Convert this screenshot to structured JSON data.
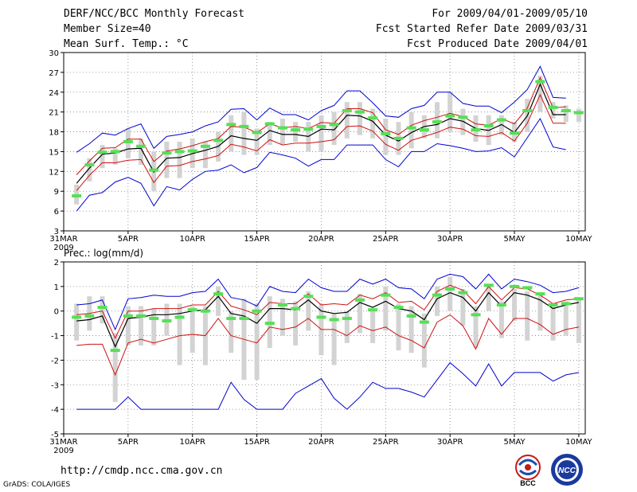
{
  "header": {
    "title": "DERF/NCC/BCC Monthly Forecast",
    "member": "Member Size=40",
    "variable": "Mean Surf. Temp.: °C",
    "forecast_period": "For 2009/04/01-2009/05/10",
    "started": "Fcst Started Refer Date 2009/03/31",
    "produced": "Fcst Produced Date 2009/04/01"
  },
  "footer": {
    "url": "http://cmdp.ncc.cma.gov.cn",
    "credit": "GrADS: COLA/IGES",
    "logo_left_text": "BCC",
    "logo_right_text": "NCC"
  },
  "colors": {
    "bar": "#d3d3d3",
    "median": "#55e055",
    "envelope": "#0000d0",
    "spread": "#d01010",
    "mean": "#000000",
    "grid": "#808080"
  },
  "chart_data": [
    {
      "type": "line",
      "title": "Mean Surf. Temp.: °C",
      "ylim": [
        3,
        30
      ],
      "yticks": [
        3,
        6,
        9,
        12,
        15,
        18,
        21,
        24,
        27,
        30
      ],
      "ytick_labels": [
        "3",
        "6",
        "9",
        "12",
        "15",
        "18",
        "21",
        "24",
        "27",
        "30"
      ],
      "x_tick_labels": [
        "31MAR",
        "5APR",
        "10APR",
        "15APR",
        "20APR",
        "25APR",
        "30APR",
        "5MAY",
        "10MAY"
      ],
      "x_tick_days": [
        0,
        5,
        10,
        15,
        20,
        25,
        30,
        35,
        40
      ],
      "year_label": "2009",
      "x_days": [
        1,
        2,
        3,
        4,
        5,
        6,
        7,
        8,
        9,
        10,
        11,
        12,
        13,
        14,
        15,
        16,
        17,
        18,
        19,
        20,
        21,
        22,
        23,
        24,
        25,
        26,
        27,
        28,
        29,
        30,
        31,
        32,
        33,
        34,
        35,
        36,
        37,
        38,
        39,
        40
      ],
      "series": [
        {
          "name": "max",
          "values": [
            14.9,
            16.2,
            17.8,
            17.5,
            18.5,
            19.2,
            15.5,
            17.3,
            17.6,
            18.0,
            18.9,
            19.5,
            21.4,
            21.5,
            19.8,
            21.6,
            20.6,
            20.6,
            19.8,
            21.2,
            22.0,
            24.2,
            24.2,
            22.4,
            20.4,
            20.2,
            21.5,
            22.0,
            24.0,
            24.0,
            22.3,
            21.9,
            21.9,
            20.9,
            22.5,
            24.4,
            27.9,
            23.2,
            23.1,
            null
          ]
        },
        {
          "name": "upper",
          "values": [
            11.5,
            13.6,
            15.5,
            15.6,
            16.9,
            16.9,
            13.5,
            15.1,
            15.4,
            15.9,
            16.5,
            17.0,
            18.8,
            18.7,
            17.9,
            19.2,
            18.6,
            18.8,
            18.5,
            19.4,
            19.3,
            21.5,
            21.5,
            20.9,
            18.3,
            17.6,
            19.0,
            19.7,
            20.2,
            20.8,
            20.3,
            19.2,
            19.0,
            20.0,
            19.2,
            21.6,
            26.2,
            21.6,
            21.8,
            null
          ]
        },
        {
          "name": "mean",
          "values": [
            10.2,
            12.5,
            14.6,
            14.8,
            15.4,
            15.5,
            11.9,
            14.0,
            14.1,
            14.7,
            15.2,
            15.8,
            17.4,
            17.0,
            16.7,
            18.2,
            17.6,
            17.6,
            17.3,
            18.4,
            18.3,
            20.5,
            20.4,
            19.6,
            17.5,
            16.6,
            17.9,
            18.8,
            19.1,
            20.0,
            19.6,
            18.5,
            18.2,
            19.1,
            17.9,
            20.4,
            25.2,
            20.6,
            20.6,
            null
          ]
        },
        {
          "name": "lower",
          "values": [
            9.1,
            11.4,
            13.3,
            13.3,
            13.7,
            13.8,
            10.3,
            12.8,
            12.9,
            13.5,
            13.9,
            14.4,
            16.1,
            15.7,
            15.1,
            16.8,
            16.0,
            16.3,
            16.3,
            16.5,
            16.8,
            18.8,
            18.9,
            18.1,
            16.1,
            15.2,
            16.7,
            17.3,
            17.9,
            18.7,
            18.4,
            17.4,
            17.3,
            17.9,
            16.6,
            19.3,
            23.6,
            19.3,
            19.3,
            null
          ]
        },
        {
          "name": "min",
          "values": [
            6.0,
            8.4,
            8.8,
            10.4,
            11.1,
            10.2,
            6.8,
            9.7,
            9.2,
            10.8,
            12.0,
            12.2,
            13.0,
            11.8,
            12.6,
            14.9,
            14.5,
            14.0,
            12.8,
            13.8,
            13.8,
            16.0,
            16.0,
            16.0,
            13.8,
            12.7,
            15.0,
            15.0,
            16.2,
            15.9,
            15.5,
            15.0,
            15.1,
            15.6,
            14.2,
            17.1,
            20.0,
            15.7,
            15.3,
            null
          ]
        }
      ],
      "bars": {
        "name": "interquartile",
        "low": [
          7.0,
          10.5,
          12.5,
          13.0,
          14.0,
          13.0,
          9.0,
          11.0,
          11.0,
          12.5,
          12.5,
          13.5,
          15.0,
          14.5,
          14.5,
          16.0,
          16.0,
          16.5,
          15.0,
          15.0,
          16.0,
          17.0,
          17.5,
          17.0,
          14.5,
          14.5,
          15.5,
          17.0,
          17.0,
          18.0,
          17.5,
          16.5,
          16.0,
          17.5,
          16.5,
          18.0,
          21.0,
          20.0,
          19.5,
          19.5
        ],
        "high": [
          10.0,
          14.0,
          16.0,
          15.5,
          18.5,
          17.0,
          15.0,
          16.5,
          16.5,
          17.0,
          16.5,
          18.0,
          20.5,
          21.0,
          18.5,
          19.5,
          20.0,
          19.5,
          19.5,
          20.5,
          21.0,
          22.5,
          22.5,
          21.5,
          20.0,
          19.5,
          21.0,
          20.5,
          22.5,
          24.0,
          21.5,
          20.5,
          20.5,
          20.5,
          19.5,
          23.0,
          26.5,
          22.5,
          22.0,
          21.5
        ]
      },
      "median": [
        8.3,
        13.0,
        14.9,
        15.0,
        16.5,
        15.8,
        12.2,
        14.8,
        15.0,
        15.1,
        15.8,
        16.7,
        19.1,
        18.8,
        17.9,
        19.2,
        18.6,
        18.3,
        18.4,
        18.8,
        19.1,
        21.2,
        21.0,
        20.1,
        17.7,
        17.0,
        18.6,
        18.3,
        19.5,
        20.4,
        20.2,
        18.3,
        18.9,
        19.8,
        17.8,
        21.2,
        25.6,
        21.7,
        21.2,
        20.9
      ]
    },
    {
      "type": "line",
      "title": "Prec.: log(mm/d)",
      "ylim": [
        -5,
        2
      ],
      "yticks": [
        -5,
        -4,
        -3,
        -2,
        -1,
        0,
        1,
        2
      ],
      "ytick_labels": [
        "-5",
        "-4",
        "-3",
        "-2",
        "-1",
        "0",
        "1",
        "2"
      ],
      "x_tick_labels": [
        "31MAR",
        "5APR",
        "10APR",
        "15APR",
        "20APR",
        "25APR",
        "30APR",
        "5MAY",
        "10MAY"
      ],
      "x_tick_days": [
        0,
        5,
        10,
        15,
        20,
        25,
        30,
        35,
        40
      ],
      "year_label": "2009",
      "x_days": [
        1,
        2,
        3,
        4,
        5,
        6,
        7,
        8,
        9,
        10,
        11,
        12,
        13,
        14,
        15,
        16,
        17,
        18,
        19,
        20,
        21,
        22,
        23,
        24,
        25,
        26,
        27,
        28,
        29,
        30,
        31,
        32,
        33,
        34,
        35,
        36,
        37,
        38,
        39,
        40
      ],
      "series": [
        {
          "name": "max",
          "values": [
            0.25,
            0.3,
            0.45,
            -0.75,
            0.5,
            0.55,
            0.65,
            0.6,
            0.6,
            0.75,
            0.8,
            1.3,
            0.55,
            0.45,
            0.2,
            1.0,
            0.8,
            0.75,
            1.3,
            0.95,
            0.8,
            0.8,
            1.3,
            1.1,
            1.3,
            0.95,
            0.9,
            0.5,
            1.3,
            1.5,
            1.4,
            0.9,
            1.5,
            0.9,
            1.3,
            1.2,
            1.05,
            0.75,
            0.8,
            0.95
          ]
        },
        {
          "name": "upper",
          "values": [
            -0.15,
            -0.1,
            0.0,
            -1.1,
            0.0,
            0.0,
            0.1,
            0.1,
            0.1,
            0.25,
            0.25,
            0.8,
            0.2,
            0.05,
            -0.15,
            0.35,
            0.3,
            0.3,
            0.7,
            0.25,
            0.3,
            0.25,
            0.65,
            0.5,
            0.75,
            0.35,
            0.4,
            0.05,
            0.8,
            1.05,
            0.85,
            0.3,
            1.0,
            0.45,
            0.95,
            0.9,
            0.65,
            0.3,
            0.45,
            0.5
          ]
        },
        {
          "name": "mean",
          "values": [
            -0.4,
            -0.35,
            -0.2,
            -1.45,
            -0.3,
            -0.25,
            -0.15,
            -0.15,
            -0.1,
            0.0,
            0.05,
            0.6,
            -0.1,
            -0.2,
            -0.5,
            0.1,
            0.1,
            0.05,
            0.45,
            0.0,
            -0.1,
            -0.05,
            0.35,
            0.15,
            0.4,
            0.1,
            0.0,
            -0.35,
            0.5,
            0.75,
            0.55,
            0.0,
            0.75,
            0.2,
            0.75,
            0.65,
            0.45,
            0.1,
            0.25,
            0.35
          ]
        },
        {
          "name": "lower",
          "values": [
            -1.4,
            -1.35,
            -1.35,
            -2.6,
            -1.3,
            -1.15,
            -1.3,
            -1.15,
            -1.0,
            -0.95,
            -1.0,
            -0.3,
            -1.0,
            -1.15,
            -1.3,
            -0.65,
            -0.75,
            -0.65,
            -0.3,
            -0.75,
            -0.75,
            -1.0,
            -0.6,
            -0.8,
            -0.65,
            -1.0,
            -1.2,
            -1.5,
            -0.45,
            -0.15,
            -0.6,
            -1.55,
            -0.3,
            -0.95,
            -0.3,
            -0.3,
            -0.55,
            -0.95,
            -0.75,
            -0.65
          ]
        },
        {
          "name": "min",
          "values": [
            -4.0,
            -4.0,
            -4.0,
            -4.0,
            -3.5,
            -4.0,
            -4.0,
            -4.0,
            -4.0,
            -4.0,
            -4.0,
            -4.0,
            -2.9,
            -3.6,
            -4.0,
            -4.0,
            -4.0,
            -3.35,
            -3.05,
            -2.75,
            -3.55,
            -4.0,
            -3.5,
            -2.9,
            -3.15,
            -3.15,
            -3.3,
            -3.5,
            -2.8,
            -2.1,
            -2.55,
            -3.05,
            -2.15,
            -3.05,
            -2.5,
            -2.5,
            -2.5,
            -2.85,
            -2.6,
            -2.5
          ]
        }
      ],
      "bars": {
        "name": "interquartile",
        "low": [
          -1.2,
          -0.8,
          -0.5,
          -3.7,
          -1.4,
          -1.4,
          -1.4,
          -1.0,
          -2.2,
          -1.7,
          -2.2,
          -0.2,
          -1.7,
          -2.8,
          -2.8,
          -1.5,
          -1.0,
          -1.4,
          -0.8,
          -1.8,
          -2.2,
          -1.3,
          -0.9,
          -1.3,
          -0.8,
          -1.6,
          -1.7,
          -2.3,
          -0.2,
          0.0,
          -0.6,
          -1.5,
          0.0,
          -1.1,
          -0.4,
          -1.2,
          -0.8,
          -1.2,
          -1.0,
          -1.3
        ],
        "high": [
          0.3,
          0.6,
          0.6,
          -0.9,
          0.2,
          0.2,
          0.1,
          0.3,
          0.3,
          0.2,
          0.2,
          1.0,
          0.0,
          0.5,
          0.3,
          0.6,
          0.5,
          0.4,
          0.8,
          0.3,
          -0.1,
          0.0,
          0.7,
          0.1,
          1.0,
          0.3,
          0.2,
          -0.1,
          1.0,
          1.4,
          0.9,
          0.2,
          1.0,
          0.4,
          0.9,
          0.8,
          0.7,
          0.3,
          0.4,
          0.5
        ]
      },
      "median": [
        -0.25,
        -0.2,
        0.15,
        -1.6,
        -0.2,
        -0.2,
        -0.3,
        -0.4,
        -0.25,
        0.05,
        0.0,
        0.7,
        -0.3,
        -0.3,
        0.0,
        -0.5,
        0.25,
        0.1,
        0.6,
        -0.25,
        -0.35,
        -0.3,
        0.45,
        0.05,
        0.65,
        0.15,
        -0.2,
        -0.45,
        0.65,
        0.9,
        0.75,
        -0.15,
        1.05,
        0.25,
        1.0,
        0.95,
        0.7,
        0.25,
        0.3,
        0.5
      ]
    }
  ]
}
